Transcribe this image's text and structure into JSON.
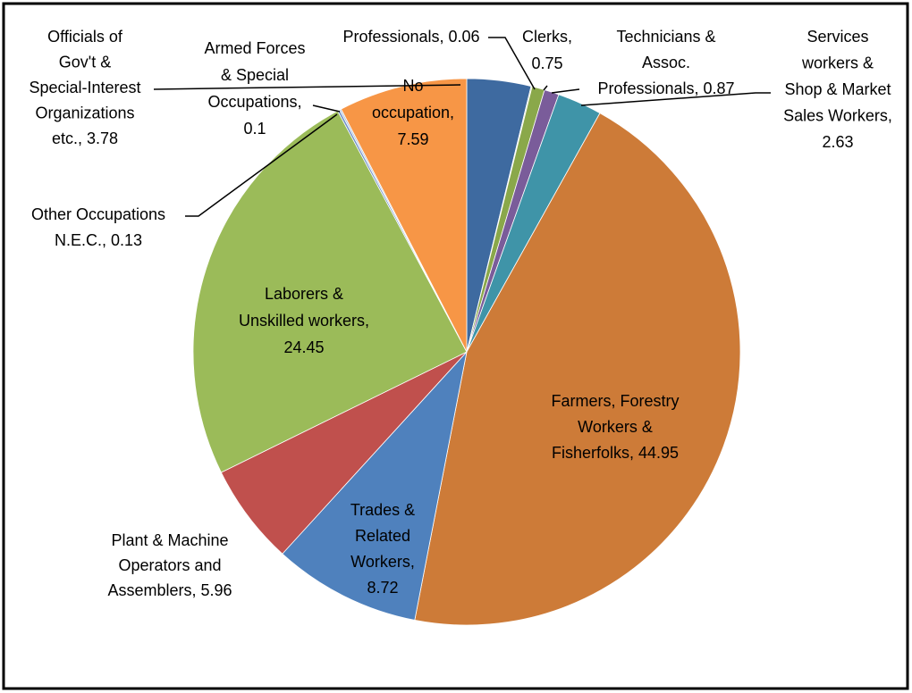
{
  "chart_data": {
    "type": "pie",
    "values": [
      3.78,
      0.06,
      0.75,
      0.87,
      2.63,
      44.95,
      8.72,
      5.96,
      24.45,
      0.13,
      0.1,
      7.59
    ],
    "value_labels": [
      [
        "Officials of",
        "Gov't &",
        "Special-Interest",
        "Organizations",
        "etc., 3.78"
      ],
      [
        "Professionals, 0.06"
      ],
      [
        "Clerks,",
        "0.75"
      ],
      [
        "Technicians &",
        "Assoc.",
        "Professionals, 0.87"
      ],
      [
        "Services",
        "workers &",
        "Shop & Market",
        "Sales Workers,",
        "2.63"
      ],
      [
        "Farmers, Forestry",
        "Workers  &",
        "Fisherfolks, 44.95"
      ],
      [
        "Trades &",
        "Related",
        "Workers,",
        "8.72"
      ],
      [
        "Plant & Machine",
        "Operators and",
        "Assemblers, 5.96"
      ],
      [
        "Laborers &",
        "Unskilled workers,",
        "24.45"
      ],
      [
        "Other Occupations",
        "N.E.C., 0.13"
      ],
      [
        "Armed Forces",
        "& Special",
        "Occupations,",
        "0.1"
      ],
      [
        "No",
        "occupation,",
        "7.59"
      ]
    ],
    "colors": [
      "#3e6aa0",
      "#c9d7a0",
      "#8aa84a",
      "#7a5c9a",
      "#3f94a8",
      "#cd7b38",
      "#4f81bd",
      "#c0504d",
      "#9bbb59",
      "#6f8fc9",
      "#b0c4de",
      "#f79646"
    ]
  }
}
